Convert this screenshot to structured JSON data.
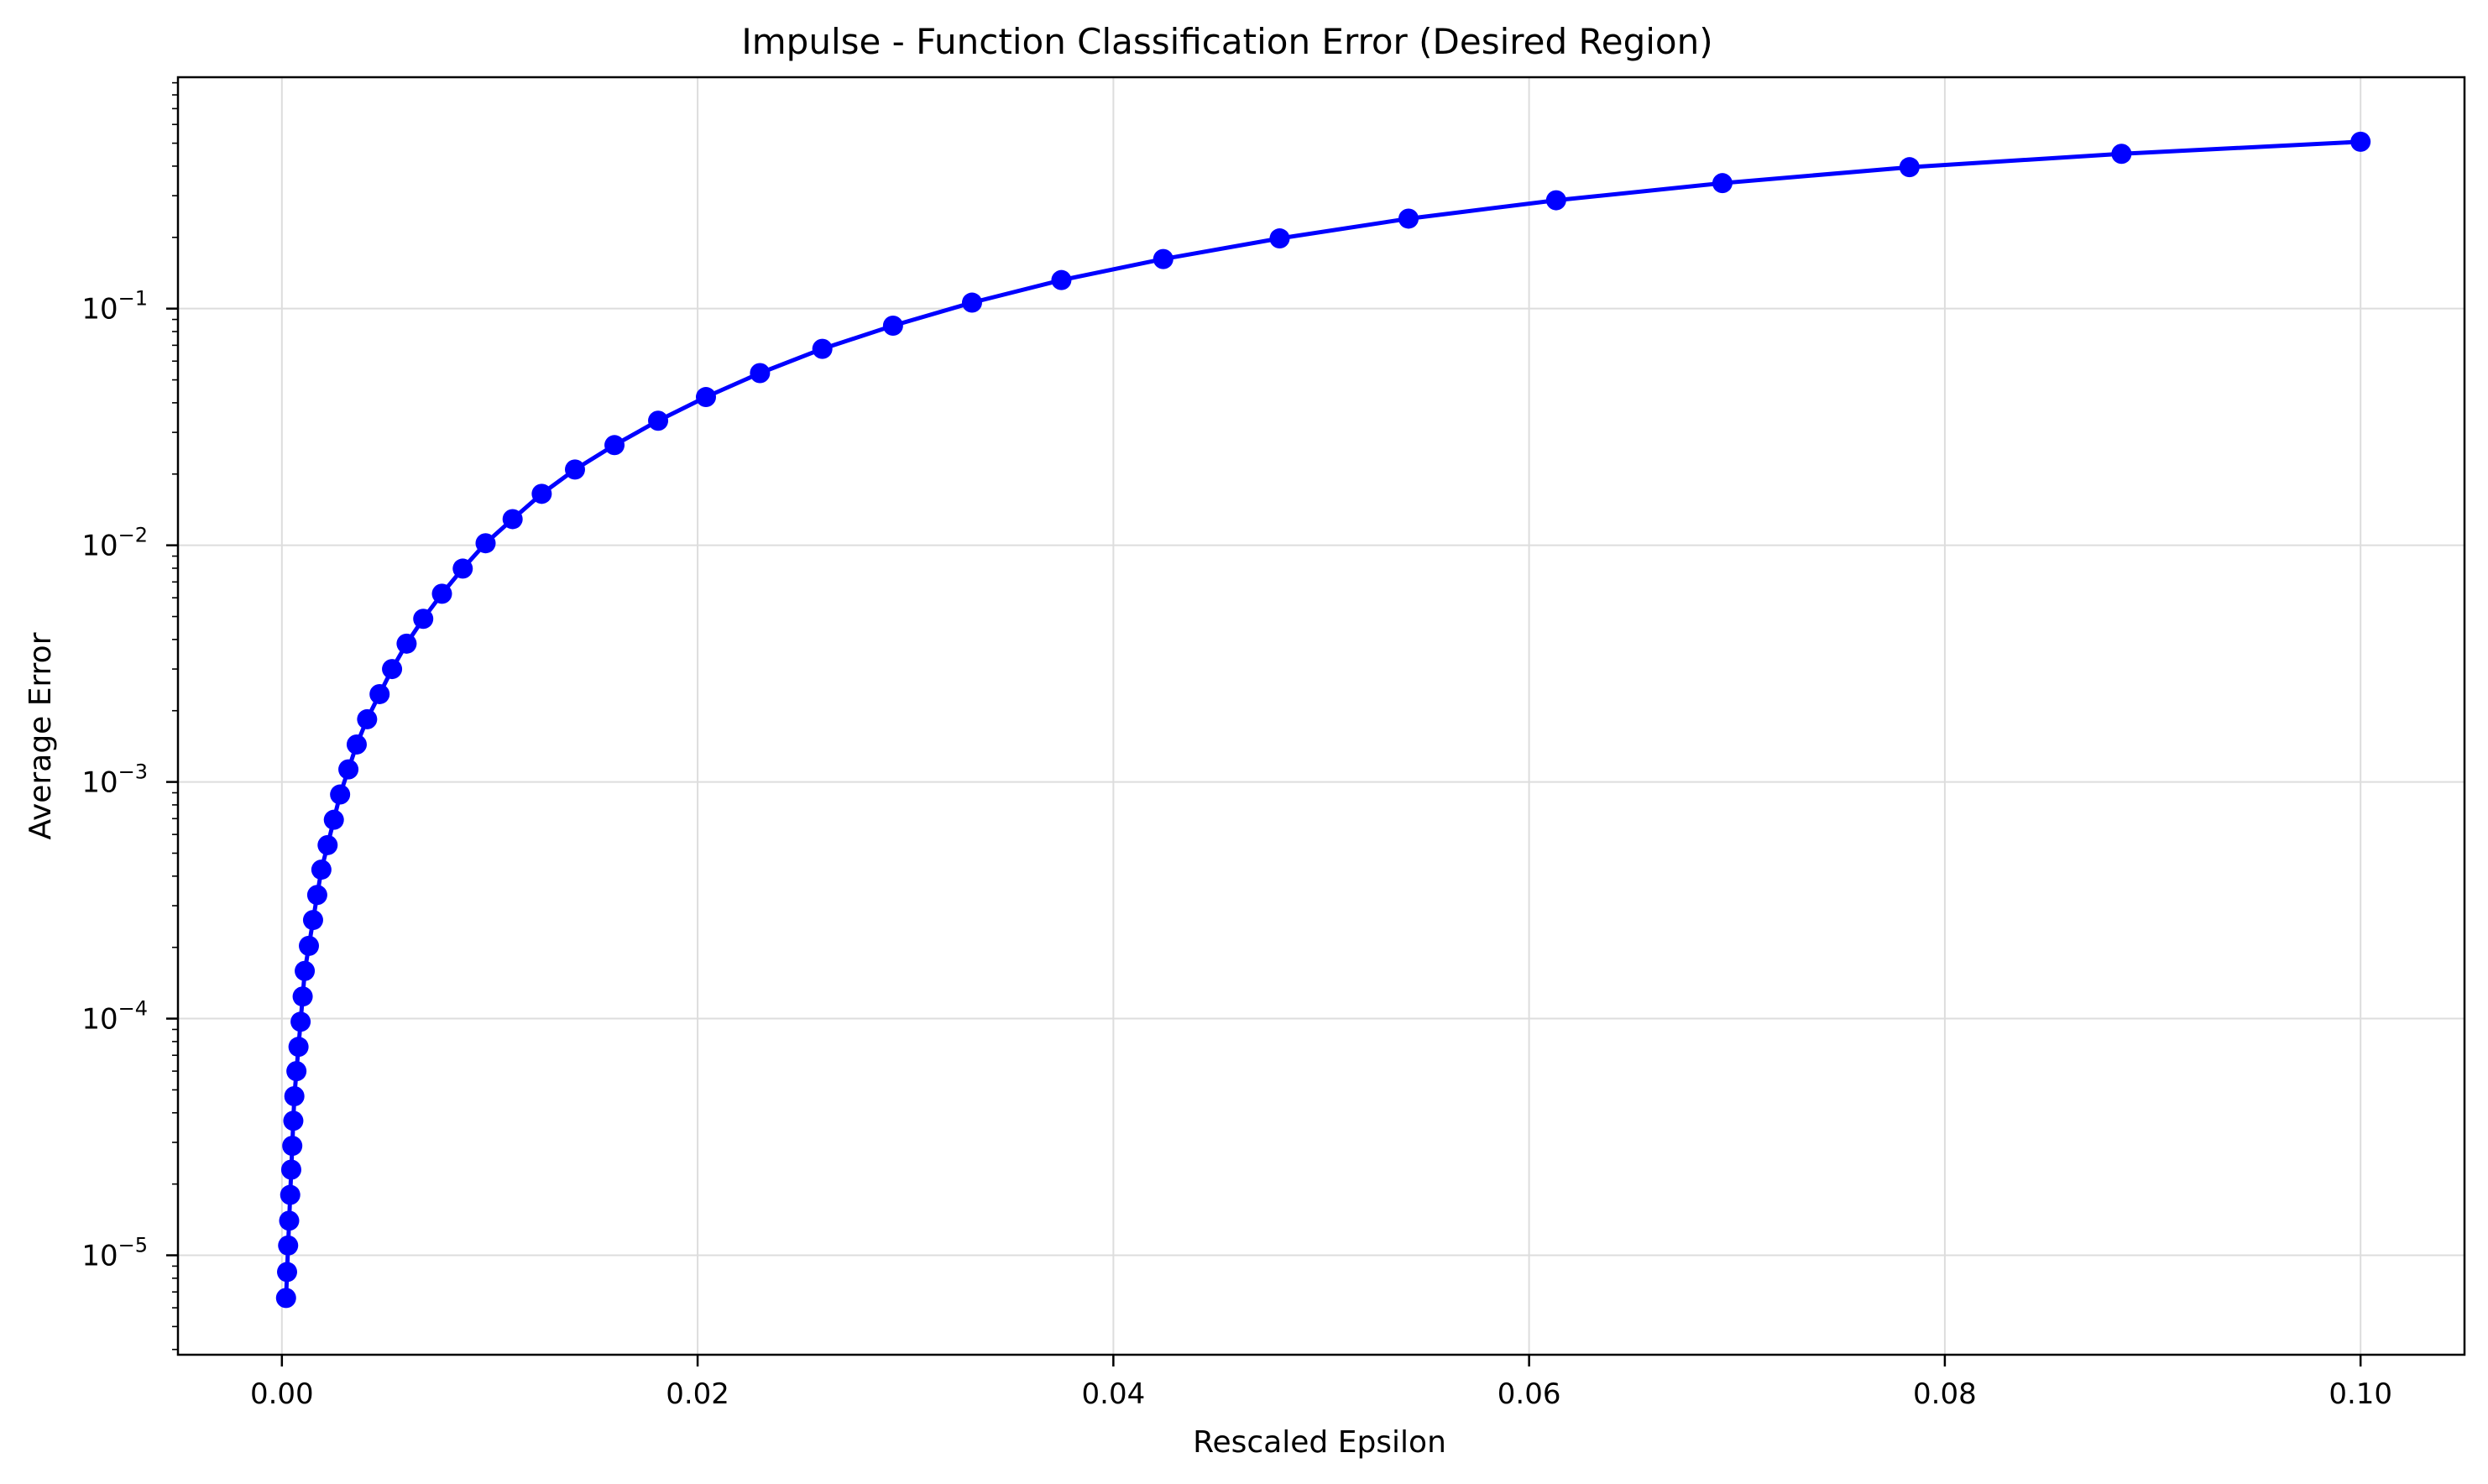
{
  "chart_data": {
    "type": "line",
    "title": "Impulse - Function Classification Error (Desired Region)",
    "xlabel": "Rescaled Epsilon",
    "ylabel": "Average Error",
    "xscale": "linear",
    "yscale": "log",
    "xlim": [
      -0.005,
      0.105
    ],
    "ylim": [
      3.8e-06,
      0.95
    ],
    "grid": true,
    "legend": "none",
    "xticks": [
      {
        "value": 0.0,
        "label": "0.00"
      },
      {
        "value": 0.02,
        "label": "0.02"
      },
      {
        "value": 0.04,
        "label": "0.04"
      },
      {
        "value": 0.06,
        "label": "0.06"
      },
      {
        "value": 0.08,
        "label": "0.08"
      },
      {
        "value": 0.1,
        "label": "0.10"
      }
    ],
    "yticks": [
      {
        "value": 1e-05,
        "base": "10",
        "exp": "−5"
      },
      {
        "value": 0.0001,
        "base": "10",
        "exp": "−4"
      },
      {
        "value": 0.001,
        "base": "10",
        "exp": "−3"
      },
      {
        "value": 0.01,
        "base": "10",
        "exp": "−2"
      },
      {
        "value": 0.1,
        "base": "10",
        "exp": "−1"
      }
    ],
    "series": [
      {
        "color": "#0000ff",
        "x": [
          0.0002,
          0.00025,
          0.0003,
          0.00035,
          0.0004,
          0.00045,
          0.0005,
          0.00055,
          0.0006,
          0.0007,
          0.0008,
          0.0009,
          0.001,
          0.0011,
          0.0013,
          0.0015,
          0.0017,
          0.0019,
          0.0022,
          0.0025,
          0.0028,
          0.0032,
          0.0036,
          0.0041,
          0.0047,
          0.0053,
          0.006,
          0.0068,
          0.0077,
          0.0087,
          0.0098,
          0.0111,
          0.0125,
          0.0141,
          0.016,
          0.0181,
          0.0204,
          0.023,
          0.026,
          0.0294,
          0.0332,
          0.0375,
          0.0424,
          0.048,
          0.0542,
          0.0613,
          0.0693,
          0.0783,
          0.0885,
          0.1
        ],
        "y": [
          6.6e-06,
          8.5e-06,
          1.1e-05,
          1.4e-05,
          1.8e-05,
          2.3e-05,
          2.9e-05,
          3.7e-05,
          4.7e-05,
          6e-05,
          7.6e-05,
          9.7e-05,
          0.000124,
          0.000159,
          0.000203,
          0.000261,
          0.000333,
          0.000426,
          0.000541,
          0.000692,
          0.000885,
          0.00113,
          0.00144,
          0.00184,
          0.00235,
          0.003,
          0.00384,
          0.00489,
          0.00624,
          0.00797,
          0.0102,
          0.0129,
          0.0165,
          0.0209,
          0.0265,
          0.0336,
          0.0423,
          0.0534,
          0.0676,
          0.0847,
          0.106,
          0.132,
          0.162,
          0.198,
          0.24,
          0.287,
          0.339,
          0.396,
          0.451,
          0.507
        ]
      }
    ]
  }
}
